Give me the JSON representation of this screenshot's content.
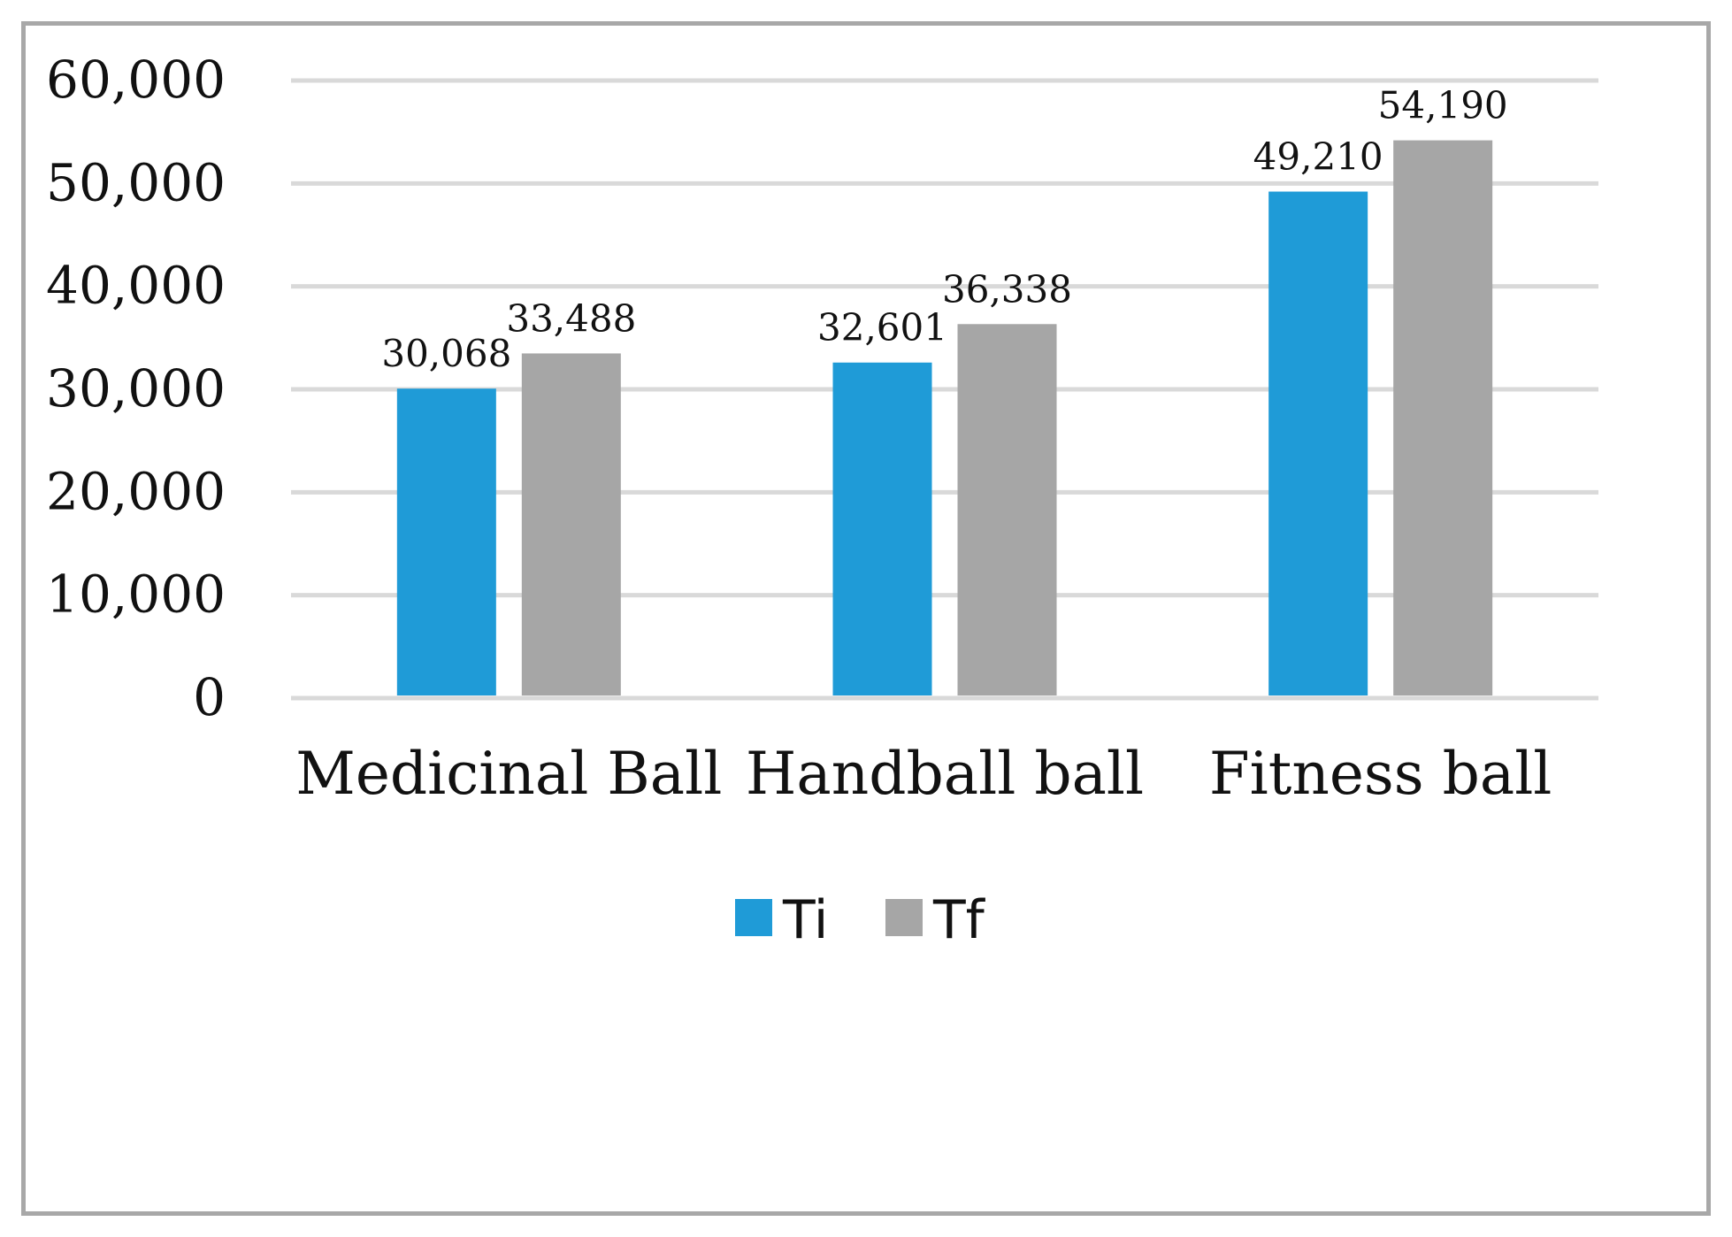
{
  "chart_data": {
    "type": "bar",
    "title": "",
    "xlabel": "",
    "ylabel": "",
    "categories": [
      "Medicinal Ball",
      "Handball ball",
      "Fitness ball"
    ],
    "series": [
      {
        "name": "Ti",
        "values": [
          30068,
          32601,
          49210
        ],
        "value_labels": [
          "30,068",
          "32,601",
          "49,210"
        ],
        "color": "#1f9bd7"
      },
      {
        "name": "Tf",
        "values": [
          33488,
          36338,
          54190
        ],
        "value_labels": [
          "33,488",
          "36,338",
          "54,190"
        ],
        "color": "#a6a6a6"
      }
    ],
    "ylim": [
      0,
      60000
    ],
    "yticks": [
      0,
      10000,
      20000,
      30000,
      40000,
      50000,
      60000
    ],
    "ytick_labels": [
      "0",
      "10,000",
      "20,000",
      "30,000",
      "40,000",
      "50,000",
      "60,000"
    ],
    "grid": true,
    "gridline_color": "#d9d9d9",
    "legend": "bottom-center",
    "frame_color": "#a8a8a8"
  }
}
